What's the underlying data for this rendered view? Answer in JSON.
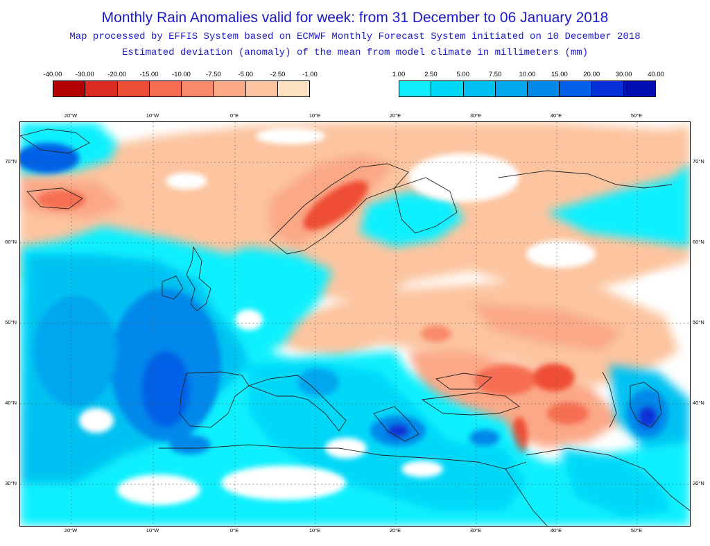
{
  "title": {
    "main": "Monthly Rain Anomalies valid for week: from 31 December to 06 January 2018",
    "subtitle": "Map processed by EFFIS System based on ECMWF Monthly Forecast System initiated on 10 December 2018",
    "description": "Estimated deviation (anomaly) of the mean from model climate in millimeters (mm)"
  },
  "legend": {
    "negative": {
      "labels": [
        "-40.00",
        "-30.00",
        "-20.00",
        "-15.00",
        "-10.00",
        "-7.50",
        "-5.00",
        "-2.50",
        "-1.00"
      ],
      "colors": [
        "#b30000",
        "#d92b1f",
        "#ef4e36",
        "#f66e52",
        "#f98a6b",
        "#fba887",
        "#fcc49f",
        "#fde0bd"
      ]
    },
    "positive": {
      "labels": [
        "1.00",
        "2.50",
        "5.00",
        "7.50",
        "10.00",
        "15.00",
        "20.00",
        "30.00",
        "40.00"
      ],
      "colors": [
        "#0ff0ff",
        "#00d8f8",
        "#00c2f2",
        "#00a6ee",
        "#0088ea",
        "#0060e6",
        "#0830d8",
        "#0010b0"
      ]
    }
  },
  "map": {
    "lon_labels": [
      "20°W",
      "10°W",
      "0°E",
      "10°E",
      "20°E",
      "30°E",
      "40°E",
      "50°E"
    ],
    "lat_labels": [
      "70°N",
      "60°N",
      "50°N",
      "40°N",
      "30°N"
    ],
    "grid": "dotted"
  }
}
